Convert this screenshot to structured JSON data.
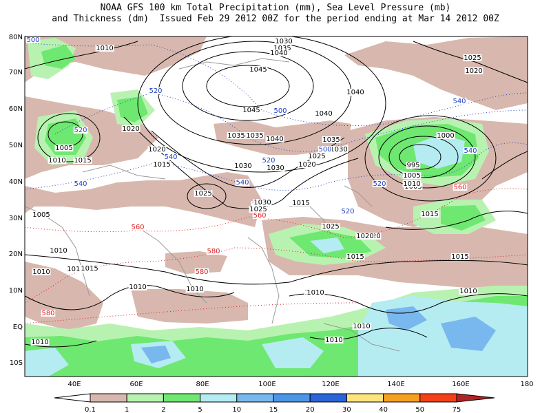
{
  "header": {
    "line1": "NOAA GFS 100 km Total Precipitation (mm), Sea Level Pressure (mb)",
    "line2": "and Thickness (dm)  Issued Feb 29 2012 00Z for the period ending at Mar 14 2012 00Z"
  },
  "axes": {
    "lat_ticks": [
      "80N",
      "70N",
      "60N",
      "50N",
      "40N",
      "30N",
      "20N",
      "10N",
      "EQ",
      "10S"
    ],
    "lon_ticks": [
      "40E",
      "60E",
      "80E",
      "100E",
      "120E",
      "140E",
      "160E",
      "180"
    ]
  },
  "legend": {
    "values": [
      "0.1",
      "1",
      "2",
      "5",
      "10",
      "15",
      "20",
      "30",
      "40",
      "50",
      "75"
    ],
    "colors": [
      "#d8b8ae",
      "#b8f2b0",
      "#6ee870",
      "#b4ecf2",
      "#78b8ee",
      "#4c96e8",
      "#2a64d8",
      "#fde47c",
      "#f6a020",
      "#f44018",
      "#b02428"
    ]
  },
  "pressure_labels": [
    "1010",
    "1030",
    "1035",
    "1040",
    "1045",
    "1045",
    "1040",
    "1035",
    "1030",
    "1020",
    "1015",
    "1020",
    "1010",
    "1005",
    "1010",
    "1020",
    "1015",
    "1020",
    "1035",
    "1030",
    "1040",
    "1025",
    "1030",
    "1035",
    "1040",
    "1020",
    "1025",
    "1005",
    "1005",
    "1000",
    "995",
    "1005",
    "1010",
    "1015",
    "1010",
    "1025",
    "1030",
    "1025",
    "1010",
    "1015",
    "1025",
    "1020",
    "1015",
    "1015",
    "1010",
    "1010",
    "1015",
    "1005",
    "1010",
    "1010",
    "1010",
    "1010",
    "1010",
    "1010",
    "1030"
  ],
  "thickness_labels": [
    "500",
    "520",
    "520",
    "500",
    "500",
    "540",
    "520",
    "540",
    "540",
    "520",
    "540",
    "520",
    "560",
    "560",
    "540",
    "560",
    "580",
    "580",
    "580"
  ],
  "colors": {
    "pressure_contour": "#000000",
    "thickness_blue": "#2040c8",
    "thickness_red": "#e02020",
    "coastline": "#999999"
  }
}
